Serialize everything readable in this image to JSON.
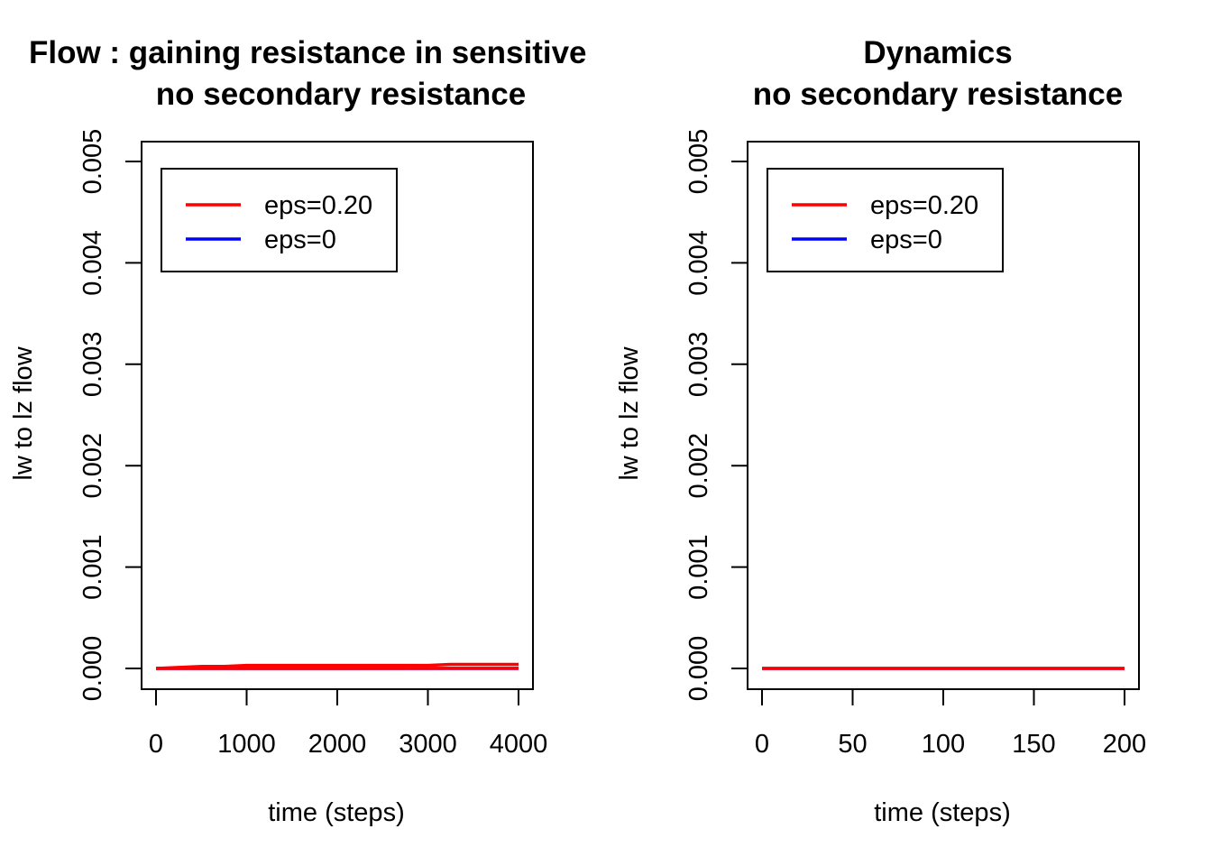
{
  "chart_data": [
    {
      "type": "line",
      "title": [
        "Flow : gaining resistance in sensitive",
        "no secondary resistance"
      ],
      "xlabel": "time (steps)",
      "ylabel": "lw to lz flow",
      "xlim": [
        0,
        4000
      ],
      "ylim": [
        0,
        0.005
      ],
      "xticks": [
        0,
        1000,
        2000,
        3000,
        4000
      ],
      "xtick_labels": [
        "0",
        "1000",
        "2000",
        "3000",
        "4000"
      ],
      "yticks": [
        0,
        0.001,
        0.002,
        0.003,
        0.004,
        0.005
      ],
      "ytick_labels": [
        "0.000",
        "0.001",
        "0.002",
        "0.003",
        "0.004",
        "0.005"
      ],
      "grid": false,
      "legend": {
        "position": "top-left",
        "entries": [
          {
            "label": "eps=0.20",
            "color": "#ff0000"
          },
          {
            "label": "eps=0",
            "color": "#0000ff"
          }
        ]
      },
      "series": [
        {
          "name": "eps=0",
          "color": "#0000ff",
          "x": [
            0,
            4000
          ],
          "y": [
            0,
            0
          ]
        },
        {
          "name": "eps=0.20",
          "color": "#ff0000",
          "x": [
            0,
            250,
            500,
            750,
            1000,
            1250,
            1500,
            1750,
            2000,
            2250,
            2500,
            2750,
            3000,
            3250,
            3500,
            3750,
            4000
          ],
          "y": [
            0,
            1e-05,
            2e-05,
            2e-05,
            3e-05,
            3e-05,
            3e-05,
            3e-05,
            3e-05,
            3e-05,
            3e-05,
            3e-05,
            3e-05,
            4e-05,
            4e-05,
            4e-05,
            4e-05
          ]
        },
        {
          "name": "eps=0.20",
          "color": "#ff0000",
          "x": [
            0,
            4000
          ],
          "y": [
            0,
            1e-06
          ]
        }
      ]
    },
    {
      "type": "line",
      "title": [
        "Dynamics",
        "no secondary resistance"
      ],
      "xlabel": "time (steps)",
      "ylabel": "lw to lz flow",
      "xlim": [
        0,
        200
      ],
      "ylim": [
        0,
        0.005
      ],
      "xticks": [
        0,
        50,
        100,
        150,
        200
      ],
      "xtick_labels": [
        "0",
        "50",
        "100",
        "150",
        "200"
      ],
      "yticks": [
        0,
        0.001,
        0.002,
        0.003,
        0.004,
        0.005
      ],
      "ytick_labels": [
        "0.000",
        "0.001",
        "0.002",
        "0.003",
        "0.004",
        "0.005"
      ],
      "grid": false,
      "legend": {
        "position": "top-left",
        "entries": [
          {
            "label": "eps=0.20",
            "color": "#ff0000"
          },
          {
            "label": "eps=0",
            "color": "#0000ff"
          }
        ]
      },
      "series": [
        {
          "name": "eps=0",
          "color": "#0000ff",
          "x": [
            0,
            200
          ],
          "y": [
            0,
            0
          ]
        },
        {
          "name": "eps=0.20",
          "color": "#ff0000",
          "x": [
            0,
            200
          ],
          "y": [
            0,
            0
          ]
        }
      ]
    }
  ]
}
